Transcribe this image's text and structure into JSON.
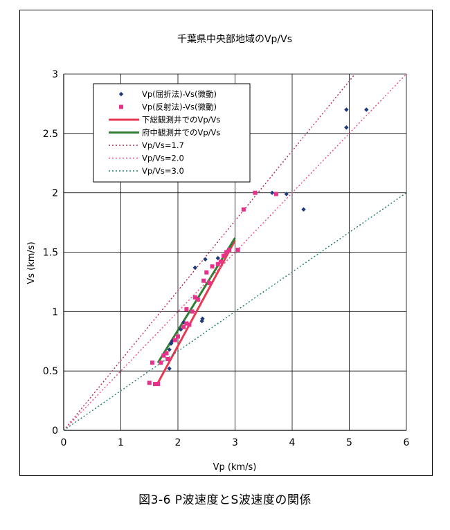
{
  "chart_data": {
    "type": "scatter",
    "title": "千葉県中央部地域のVp/Vs",
    "xlabel": "Vp (km/s)",
    "ylabel": "Vs (km/s)",
    "xlim": [
      0,
      6
    ],
    "ylim": [
      0,
      3
    ],
    "x_ticks": [
      "0",
      "1",
      "2",
      "3",
      "4",
      "5",
      "6"
    ],
    "y_ticks": [
      "0",
      "0.5",
      "1",
      "1.5",
      "2",
      "2.5",
      "3"
    ],
    "grid": true,
    "legend_position": "top-left",
    "series": [
      {
        "name": "Vp(屈折法)-Vs(微動)",
        "kind": "scatter",
        "marker": "diamond",
        "color": "#1f3a7a",
        "points": [
          [
            1.85,
            0.52
          ],
          [
            1.85,
            0.68
          ],
          [
            1.88,
            0.73
          ],
          [
            1.9,
            0.75
          ],
          [
            2.05,
            0.85
          ],
          [
            2.1,
            0.91
          ],
          [
            2.3,
            1.37
          ],
          [
            2.42,
            0.92
          ],
          [
            2.43,
            0.94
          ],
          [
            2.48,
            1.44
          ],
          [
            2.7,
            1.45
          ],
          [
            3.65,
            2.0
          ],
          [
            3.9,
            1.99
          ],
          [
            4.2,
            1.86
          ],
          [
            4.95,
            2.55
          ],
          [
            4.95,
            2.7
          ],
          [
            5.3,
            2.7
          ]
        ]
      },
      {
        "name": "Vp(反射法)-Vs(微動)",
        "kind": "scatter",
        "marker": "square",
        "color": "#e8318a",
        "points": [
          [
            1.5,
            0.4
          ],
          [
            1.55,
            0.57
          ],
          [
            1.6,
            0.39
          ],
          [
            1.65,
            0.39
          ],
          [
            1.7,
            0.57
          ],
          [
            1.75,
            0.63
          ],
          [
            1.8,
            0.65
          ],
          [
            1.82,
            0.6
          ],
          [
            1.95,
            0.76
          ],
          [
            2.0,
            0.79
          ],
          [
            2.1,
            0.87
          ],
          [
            2.15,
            0.9
          ],
          [
            2.2,
            0.89
          ],
          [
            2.25,
            1.0
          ],
          [
            2.3,
            1.12
          ],
          [
            2.35,
            1.1
          ],
          [
            2.45,
            1.26
          ],
          [
            2.5,
            1.33
          ],
          [
            2.55,
            1.24
          ],
          [
            2.6,
            1.38
          ],
          [
            2.7,
            1.4
          ],
          [
            2.75,
            1.42
          ],
          [
            2.8,
            1.47
          ],
          [
            2.85,
            1.5
          ],
          [
            2.9,
            1.52
          ],
          [
            3.05,
            1.52
          ],
          [
            3.15,
            1.86
          ],
          [
            3.35,
            2.0
          ],
          [
            3.72,
            1.99
          ],
          [
            2.15,
            1.02
          ]
        ]
      },
      {
        "name": "下総観測井でのVp/Vs",
        "kind": "line",
        "style": "solid",
        "color": "#e8384f",
        "points": [
          [
            1.65,
            0.4
          ],
          [
            3.0,
            1.6
          ]
        ]
      },
      {
        "name": "府中観測井でのVp/Vs",
        "kind": "line",
        "style": "solid",
        "color": "#2e7d32",
        "points": [
          [
            1.65,
            0.57
          ],
          [
            3.0,
            1.62
          ]
        ]
      },
      {
        "name": "Vp/Vs=1.7",
        "kind": "line",
        "style": "dotted",
        "color": "#b22b4a",
        "points": [
          [
            0,
            0
          ],
          [
            5.1,
            3.0
          ]
        ]
      },
      {
        "name": "Vp/Vs=2.0",
        "kind": "line",
        "style": "dotted",
        "color": "#e8488a",
        "points": [
          [
            0,
            0
          ],
          [
            6,
            3.0
          ]
        ]
      },
      {
        "name": "Vp/Vs=3.0",
        "kind": "line",
        "style": "dotted",
        "color": "#1a7a6a",
        "points": [
          [
            0,
            0
          ],
          [
            6,
            2.0
          ]
        ]
      }
    ]
  },
  "caption": "図3-6 P波速度とS波速度の関係"
}
